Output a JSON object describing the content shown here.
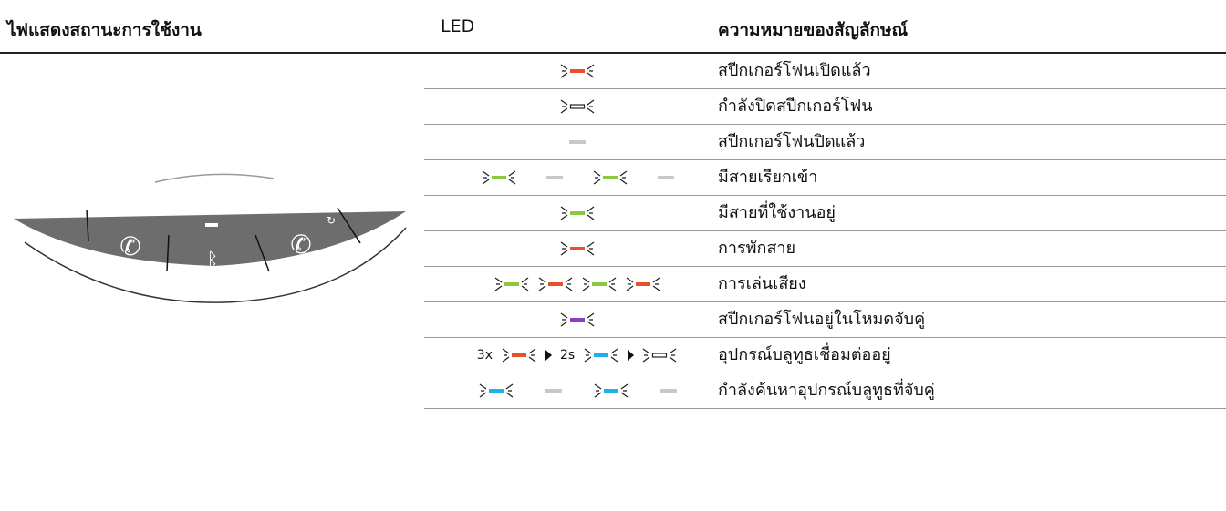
{
  "header": {
    "status": "ไฟแสดงสถานะการใช้งาน",
    "led": "LED",
    "meaning": "ความหมายของสัญลักษณ์"
  },
  "rows": [
    {
      "meaning": "สปีกเกอร์โฟนเปิดแล้ว"
    },
    {
      "meaning": "กำลังปิดสปีกเกอร์โฟน"
    },
    {
      "meaning": "สปีกเกอร์โฟนปิดแล้ว"
    },
    {
      "meaning": "มีสายเรียกเข้า"
    },
    {
      "meaning": "มีสายที่ใช้งานอยู่"
    },
    {
      "meaning": "การพักสาย"
    },
    {
      "meaning": "การเล่นเสียง"
    },
    {
      "meaning": "สปีกเกอร์โฟนอยู่ในโหมดจับคู่"
    },
    {
      "meaning": "อุปกรณ์บลูทูธเชื่อมต่ออยู่",
      "led_texts": [
        "3x",
        "2s"
      ]
    },
    {
      "meaning": "กำลังค้นหาอุปกรณ์บลูทูธที่จับคู่"
    }
  ]
}
